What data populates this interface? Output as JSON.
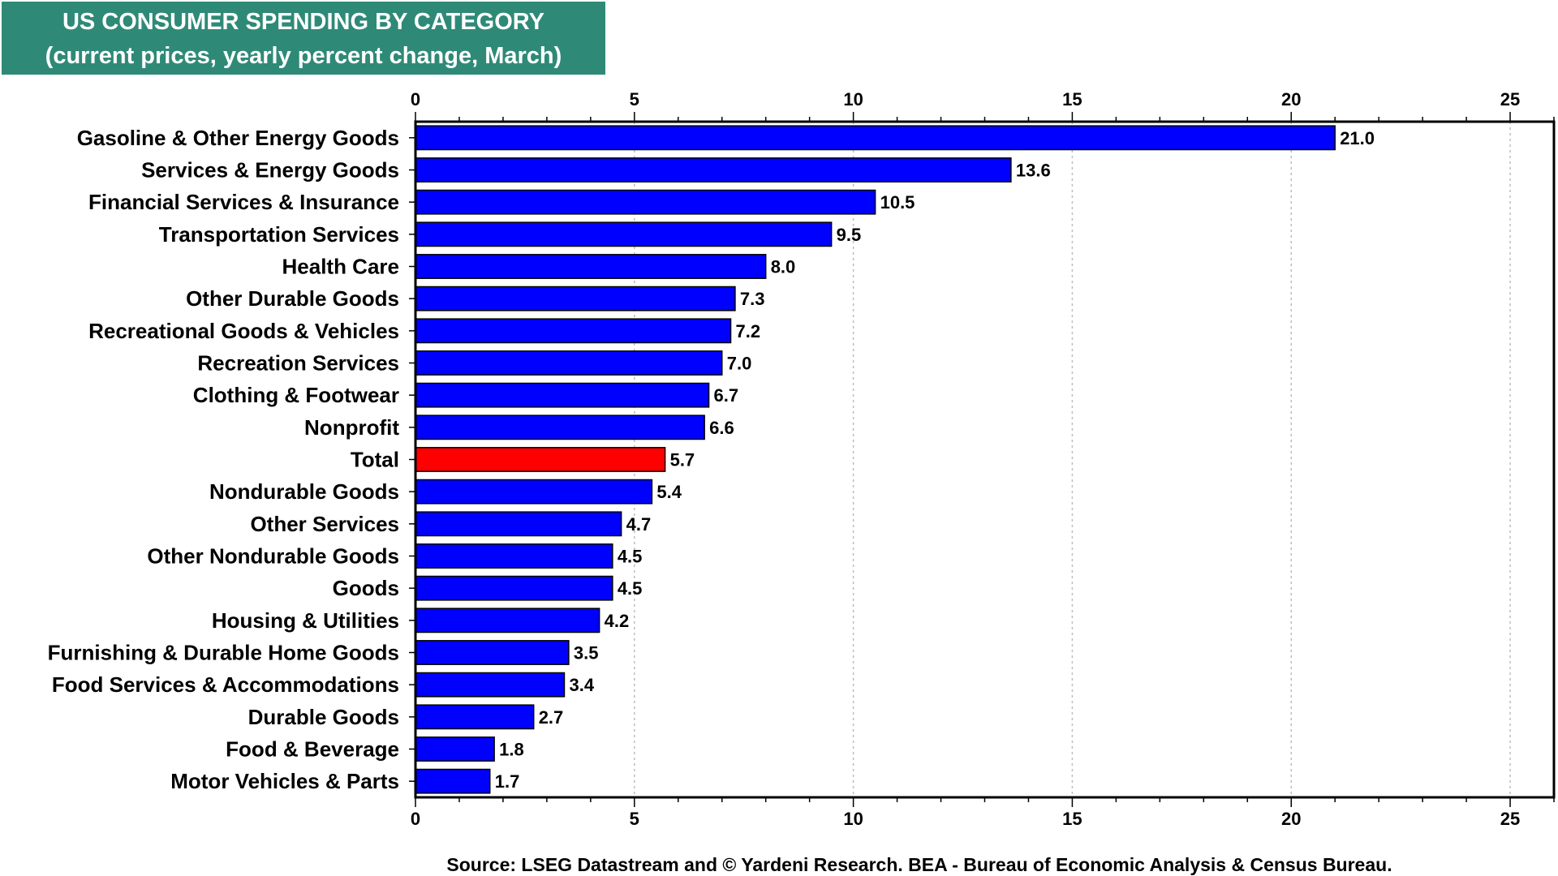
{
  "chart_data": {
    "type": "bar",
    "orientation": "horizontal",
    "title": "US CONSUMER SPENDING BY CATEGORY",
    "subtitle": "(current prices, yearly percent change, March)",
    "categories": [
      "Gasoline & Other Energy Goods",
      "Services & Energy Goods",
      "Financial Services & Insurance",
      "Transportation Services",
      "Health Care",
      "Other Durable Goods",
      "Recreational Goods & Vehicles",
      "Recreation Services",
      "Clothing & Footwear",
      "Nonprofit",
      "Total",
      "Nondurable Goods",
      "Other Services",
      "Other Nondurable Goods",
      "Goods",
      "Housing & Utilities",
      "Furnishing & Durable Home Goods",
      "Food Services & Accommodations",
      "Durable Goods",
      "Food & Beverage",
      "Motor Vehicles & Parts"
    ],
    "values": [
      21.0,
      13.6,
      10.5,
      9.5,
      8.0,
      7.3,
      7.2,
      7.0,
      6.7,
      6.6,
      5.7,
      5.4,
      4.7,
      4.5,
      4.5,
      4.2,
      3.5,
      3.4,
      2.7,
      1.8,
      1.7
    ],
    "value_labels": [
      "21.0",
      "13.6",
      "10.5",
      "9.5",
      "8.0",
      "7.3",
      "7.2",
      "7.0",
      "6.7",
      "6.6",
      "5.7",
      "5.4",
      "4.7",
      "4.5",
      "4.5",
      "4.2",
      "3.5",
      "3.4",
      "2.7",
      "1.8",
      "1.7"
    ],
    "highlight_category": "Total",
    "xlim": [
      0,
      26
    ],
    "xticks": [
      0,
      5,
      10,
      15,
      20,
      25
    ],
    "xtick_labels": [
      "0",
      "5",
      "10",
      "15",
      "20",
      "25"
    ],
    "axis_position": "top-and-bottom",
    "grid": "vertical dotted",
    "xlabel": "",
    "ylabel": "",
    "colors": {
      "bar": "#0000ff",
      "highlight_bar": "#ff0000",
      "title_bg": "#2e8a77",
      "title_text": "#ffffff"
    },
    "source": "Source: LSEG Datastream and © Yardeni Research. BEA - Bureau of Economic Analysis & Census Bureau."
  }
}
